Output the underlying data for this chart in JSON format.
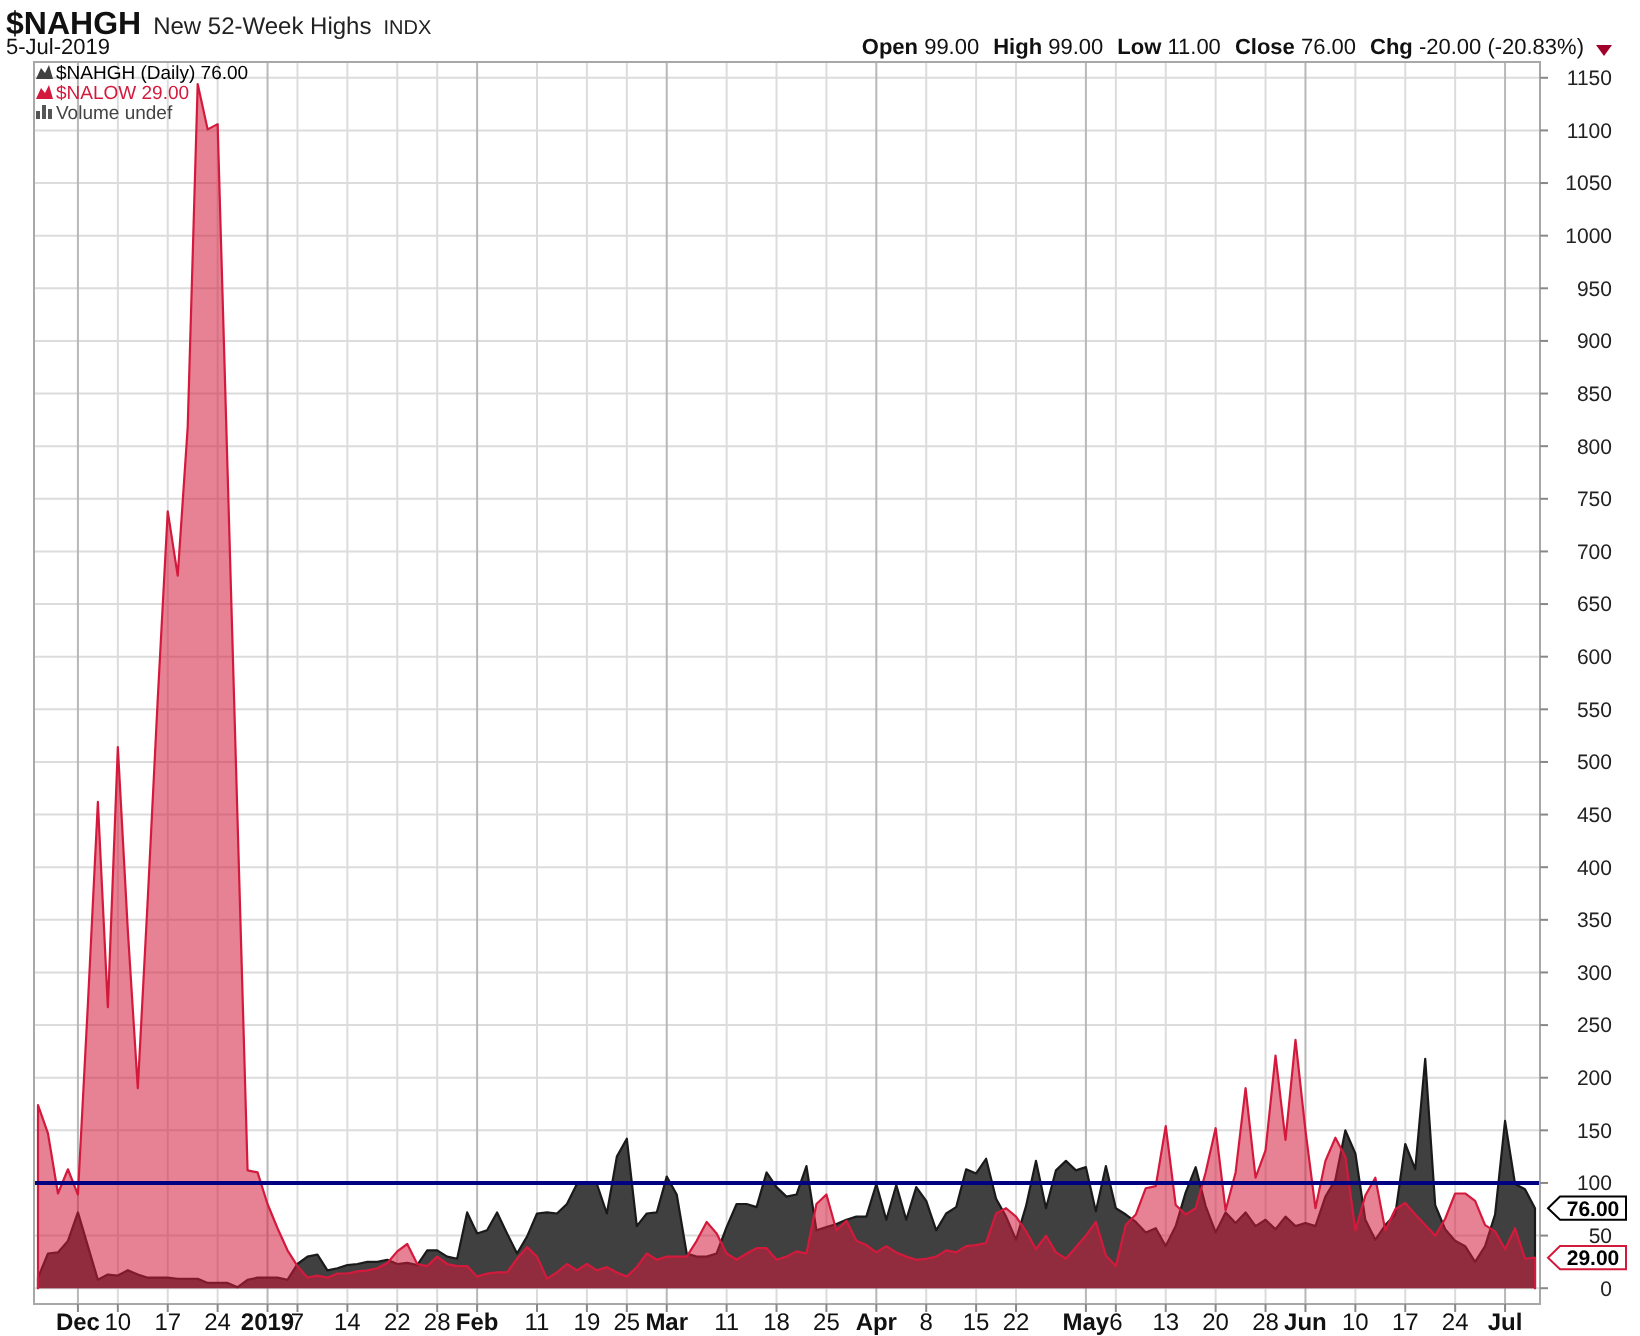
{
  "chart_data": {
    "type": "area",
    "title": "$NAHGH",
    "subtitle": "New 52-Week Highs",
    "annotations": [
      "INDX",
      "5-Jul-2019",
      "Open 99.00",
      "High 99.00",
      "Low 11.00",
      "Close 76.00",
      "Chg -20.00 (-20.83%)",
      "Volume undef"
    ],
    "categories": [
      null,
      null,
      null,
      null,
      "Dec",
      null,
      null,
      null,
      "10",
      null,
      null,
      null,
      null,
      "17",
      null,
      null,
      null,
      null,
      "24",
      null,
      null,
      null,
      null,
      "2019",
      null,
      null,
      "7",
      null,
      null,
      null,
      null,
      "14",
      null,
      null,
      null,
      null,
      "22",
      null,
      null,
      null,
      "28",
      null,
      null,
      null,
      "Feb",
      null,
      null,
      null,
      null,
      null,
      "11",
      null,
      null,
      null,
      null,
      "19",
      null,
      null,
      null,
      "25",
      null,
      null,
      null,
      "Mar",
      null,
      null,
      null,
      null,
      null,
      "11",
      null,
      null,
      null,
      null,
      "18",
      null,
      null,
      null,
      null,
      "25",
      null,
      null,
      null,
      null,
      "Apr",
      null,
      null,
      null,
      null,
      "8",
      null,
      null,
      null,
      null,
      "15",
      null,
      null,
      null,
      "22",
      null,
      null,
      null,
      null,
      null,
      null,
      "May",
      null,
      null,
      "6",
      null,
      null,
      null,
      null,
      "13",
      null,
      null,
      null,
      null,
      "20",
      null,
      null,
      null,
      null,
      "28",
      null,
      null,
      null,
      "Jun",
      null,
      null,
      null,
      null,
      "10",
      null,
      null,
      null,
      null,
      "17",
      null,
      null,
      null,
      null,
      "24",
      null,
      null,
      null,
      null,
      "Jul",
      null,
      null,
      null
    ],
    "series": [
      {
        "name": "$NAHGH (Daily) 76.00",
        "color": "#404040",
        "values": [
          10,
          33,
          34,
          45,
          72,
          40,
          8,
          13,
          12,
          17,
          13,
          10,
          10,
          10,
          9,
          9,
          9,
          5,
          5,
          5,
          1,
          8,
          10,
          10,
          10,
          8,
          23,
          30,
          32,
          17,
          19,
          22,
          23,
          25,
          25,
          27,
          23,
          24,
          22,
          36,
          36,
          30,
          28,
          72,
          52,
          55,
          72,
          52,
          33,
          49,
          71,
          72,
          71,
          80,
          99,
          100,
          99,
          71,
          125,
          142,
          59,
          71,
          72,
          106,
          89,
          33,
          30,
          30,
          33,
          58,
          80,
          80,
          77,
          110,
          96,
          87,
          89,
          116,
          55,
          58,
          61,
          65,
          68,
          68,
          99,
          65,
          98,
          65,
          96,
          83,
          55,
          71,
          77,
          113,
          109,
          123,
          85,
          68,
          46,
          78,
          121,
          76,
          112,
          121,
          112,
          115,
          73,
          116,
          76,
          70,
          63,
          53,
          57,
          40,
          59,
          91,
          115,
          78,
          53,
          72,
          62,
          72,
          59,
          65,
          56,
          68,
          59,
          62,
          59,
          87,
          103,
          150,
          128,
          65,
          46,
          60,
          70,
          137,
          113,
          218,
          79,
          56,
          45,
          40,
          25,
          40,
          70,
          159,
          99,
          94,
          76
        ],
        "value_labels": [
          null,
          null,
          null,
          null,
          null,
          null,
          null,
          null,
          null,
          null,
          null,
          null,
          null,
          null,
          null,
          null,
          null,
          null,
          null,
          null,
          null,
          null,
          null,
          null,
          null,
          null,
          null,
          null,
          null,
          null,
          null,
          null,
          null,
          null,
          null,
          null,
          null,
          null,
          null,
          null,
          null,
          null,
          null,
          null,
          null,
          null,
          null,
          null,
          null,
          null,
          null,
          null,
          null,
          null,
          null,
          null,
          null,
          null,
          null,
          null,
          null,
          null,
          null,
          null,
          null,
          null,
          null,
          null,
          null,
          null,
          null,
          null,
          null,
          null,
          null,
          null,
          null,
          null,
          null,
          null,
          null,
          null,
          null,
          null,
          null,
          null,
          null,
          null,
          null,
          null,
          null,
          null,
          null,
          null,
          null,
          null,
          null,
          null,
          null,
          null,
          null,
          null,
          null,
          null,
          null,
          null,
          null,
          null,
          null,
          null,
          null,
          null,
          null,
          null,
          null,
          null,
          null,
          null,
          null,
          null,
          null,
          null,
          null,
          null,
          null,
          null,
          null,
          null,
          null,
          null,
          null,
          null,
          null,
          null,
          null,
          null,
          null,
          null,
          null,
          null,
          null,
          null,
          null,
          null,
          null,
          null,
          null,
          null,
          null,
          null,
          "76.00"
        ]
      },
      {
        "name": "$NALOW 29.00",
        "color": "#d41a3c",
        "values": [
          174,
          147,
          90,
          113,
          89,
          270,
          462,
          267,
          514,
          340,
          190,
          370,
          560,
          738,
          677,
          818,
          1144,
          1101,
          1106,
          775,
          443,
          112,
          110,
          80,
          57,
          36,
          21,
          10,
          12,
          10,
          14,
          14,
          16,
          17,
          19,
          24,
          35,
          42,
          23,
          21,
          30,
          23,
          21,
          21,
          11,
          14,
          15,
          15,
          28,
          39,
          30,
          9,
          15,
          23,
          17,
          23,
          17,
          20,
          15,
          11,
          20,
          33,
          27,
          30,
          30,
          30,
          45,
          63,
          52,
          33,
          27,
          33,
          38,
          38,
          27,
          30,
          35,
          33,
          80,
          89,
          55,
          64,
          45,
          41,
          34,
          40,
          34,
          30,
          27,
          28,
          30,
          36,
          34,
          40,
          41,
          43,
          71,
          76,
          68,
          54,
          37,
          50,
          34,
          28,
          39,
          50,
          63,
          31,
          21,
          60,
          70,
          95,
          97,
          154,
          79,
          70,
          76,
          110,
          152,
          74,
          110,
          190,
          105,
          131,
          221,
          141,
          236,
          150,
          76,
          121,
          143,
          125,
          55,
          88,
          105,
          55,
          75,
          81,
          70,
          60,
          50,
          66,
          90,
          90,
          83,
          60,
          54,
          37,
          57,
          28,
          29
        ],
        "value_labels": [
          null,
          null,
          null,
          null,
          null,
          null,
          null,
          null,
          null,
          null,
          null,
          null,
          null,
          null,
          null,
          null,
          null,
          null,
          null,
          null,
          null,
          null,
          null,
          null,
          null,
          null,
          null,
          null,
          null,
          null,
          null,
          null,
          null,
          null,
          null,
          null,
          null,
          null,
          null,
          null,
          null,
          null,
          null,
          null,
          null,
          null,
          null,
          null,
          null,
          null,
          null,
          null,
          null,
          null,
          null,
          null,
          null,
          null,
          null,
          null,
          null,
          null,
          null,
          null,
          null,
          null,
          null,
          null,
          null,
          null,
          null,
          null,
          null,
          null,
          null,
          null,
          null,
          null,
          null,
          null,
          null,
          null,
          null,
          null,
          null,
          null,
          null,
          null,
          null,
          null,
          null,
          null,
          null,
          null,
          null,
          null,
          null,
          null,
          null,
          null,
          null,
          null,
          null,
          null,
          null,
          null,
          null,
          null,
          null,
          null,
          null,
          null,
          null,
          null,
          null,
          null,
          null,
          null,
          null,
          null,
          null,
          null,
          null,
          null,
          null,
          null,
          null,
          null,
          null,
          null,
          null,
          null,
          null,
          null,
          null,
          null,
          null,
          null,
          null,
          null,
          null,
          null,
          null,
          null,
          null,
          null,
          null,
          null,
          null,
          null,
          "29.00"
        ]
      }
    ],
    "ylim": [
      -15,
      1165
    ],
    "yticks": [
      0,
      50,
      100,
      150,
      200,
      250,
      300,
      350,
      400,
      450,
      500,
      550,
      600,
      650,
      700,
      750,
      800,
      850,
      900,
      950,
      1000,
      1050,
      1100,
      1150
    ],
    "grid": true,
    "legend": "top left",
    "ref_lines": [
      {
        "axis": "y",
        "value": 100,
        "color": "#000080"
      }
    ]
  }
}
